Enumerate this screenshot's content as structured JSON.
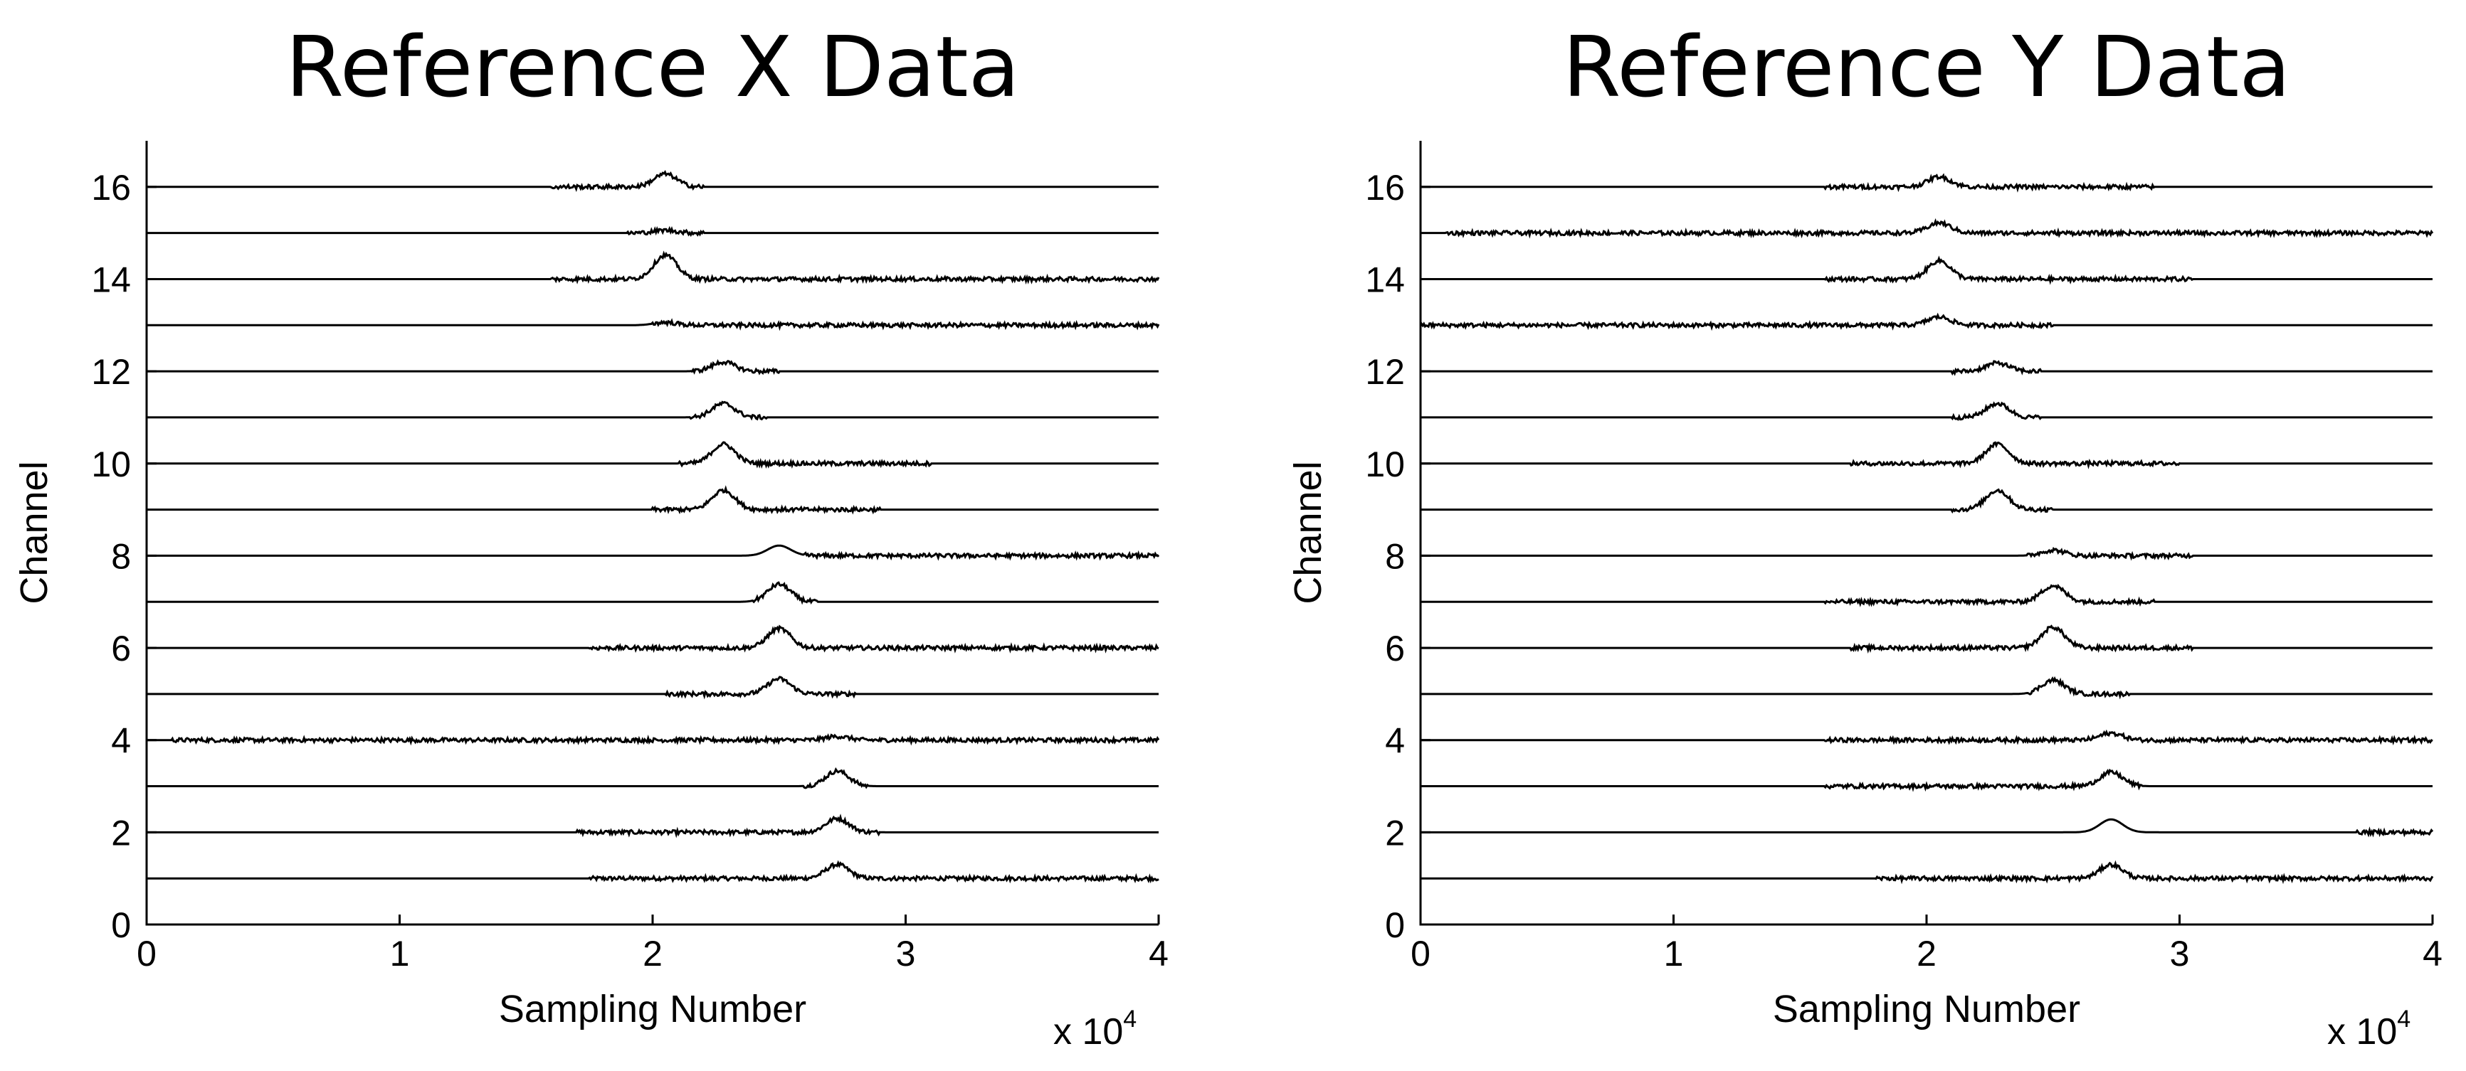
{
  "chart_data": [
    {
      "type": "line",
      "title": "Reference X Data",
      "xlabel": "Sampling Number",
      "ylabel": "Channel",
      "x_multiplier": "x 10",
      "x_multiplier_exp": "4",
      "xlim": [
        0,
        4
      ],
      "ylim": [
        0,
        17
      ],
      "xticks": [
        "0",
        "1",
        "2",
        "3",
        "4"
      ],
      "yticks": [
        "0",
        "2",
        "4",
        "6",
        "8",
        "10",
        "12",
        "14",
        "16"
      ],
      "grid": false,
      "series": [
        {
          "channel": 1,
          "peak_x": 2.73,
          "peak_height": 0.3,
          "noise_start": 1.75,
          "noise_end": 4.0
        },
        {
          "channel": 2,
          "peak_x": 2.73,
          "peak_height": 0.3,
          "noise_start": 1.7,
          "noise_end": 2.9
        },
        {
          "channel": 3,
          "peak_x": 2.73,
          "peak_height": 0.33,
          "noise_start": 2.6,
          "noise_end": 2.85
        },
        {
          "channel": 4,
          "peak_x": 2.73,
          "peak_height": 0.08,
          "noise_start": 0.1,
          "noise_end": 4.0
        },
        {
          "channel": 5,
          "peak_x": 2.5,
          "peak_height": 0.33,
          "noise_start": 2.05,
          "noise_end": 2.8
        },
        {
          "channel": 6,
          "peak_x": 2.5,
          "peak_height": 0.42,
          "noise_start": 1.75,
          "noise_end": 4.0
        },
        {
          "channel": 7,
          "peak_x": 2.5,
          "peak_height": 0.38,
          "noise_start": 2.4,
          "noise_end": 2.65
        },
        {
          "channel": 8,
          "peak_x": 2.5,
          "peak_height": 0.22,
          "noise_start": 2.6,
          "noise_end": 4.0
        },
        {
          "channel": 9,
          "peak_x": 2.28,
          "peak_height": 0.42,
          "noise_start": 2.0,
          "noise_end": 2.9
        },
        {
          "channel": 10,
          "peak_x": 2.28,
          "peak_height": 0.42,
          "noise_start": 2.1,
          "noise_end": 3.1
        },
        {
          "channel": 11,
          "peak_x": 2.28,
          "peak_height": 0.3,
          "noise_start": 2.15,
          "noise_end": 2.45
        },
        {
          "channel": 12,
          "peak_x": 2.28,
          "peak_height": 0.2,
          "noise_start": 2.15,
          "noise_end": 2.5
        },
        {
          "channel": 13,
          "peak_x": 2.05,
          "peak_height": 0.06,
          "noise_start": 2.0,
          "noise_end": 4.0
        },
        {
          "channel": 14,
          "peak_x": 2.05,
          "peak_height": 0.52,
          "noise_start": 1.6,
          "noise_end": 4.0
        },
        {
          "channel": 15,
          "peak_x": 2.05,
          "peak_height": 0.06,
          "noise_start": 1.9,
          "noise_end": 2.2
        },
        {
          "channel": 16,
          "peak_x": 2.05,
          "peak_height": 0.28,
          "noise_start": 1.6,
          "noise_end": 2.2
        }
      ]
    },
    {
      "type": "line",
      "title": "Reference Y Data",
      "xlabel": "Sampling Number",
      "ylabel": "Channel",
      "x_multiplier": "x 10",
      "x_multiplier_exp": "4",
      "xlim": [
        0,
        4
      ],
      "ylim": [
        0,
        17
      ],
      "xticks": [
        "0",
        "1",
        "2",
        "3",
        "4"
      ],
      "yticks": [
        "0",
        "2",
        "4",
        "6",
        "8",
        "10",
        "12",
        "14",
        "16"
      ],
      "grid": false,
      "series": [
        {
          "channel": 1,
          "peak_x": 2.73,
          "peak_height": 0.3,
          "noise_start": 1.8,
          "noise_end": 4.0
        },
        {
          "channel": 2,
          "peak_x": 2.73,
          "peak_height": 0.28,
          "noise_start": 3.7,
          "noise_end": 4.0
        },
        {
          "channel": 3,
          "peak_x": 2.73,
          "peak_height": 0.3,
          "noise_start": 1.6,
          "noise_end": 2.85
        },
        {
          "channel": 4,
          "peak_x": 2.73,
          "peak_height": 0.15,
          "noise_start": 1.6,
          "noise_end": 4.0
        },
        {
          "channel": 5,
          "peak_x": 2.5,
          "peak_height": 0.3,
          "noise_start": 2.4,
          "noise_end": 2.8
        },
        {
          "channel": 6,
          "peak_x": 2.5,
          "peak_height": 0.45,
          "noise_start": 1.7,
          "noise_end": 3.05
        },
        {
          "channel": 7,
          "peak_x": 2.5,
          "peak_height": 0.35,
          "noise_start": 1.6,
          "noise_end": 2.9
        },
        {
          "channel": 8,
          "peak_x": 2.5,
          "peak_height": 0.12,
          "noise_start": 2.4,
          "noise_end": 3.05
        },
        {
          "channel": 9,
          "peak_x": 2.28,
          "peak_height": 0.42,
          "noise_start": 2.1,
          "noise_end": 2.5
        },
        {
          "channel": 10,
          "peak_x": 2.28,
          "peak_height": 0.42,
          "noise_start": 1.7,
          "noise_end": 3.0
        },
        {
          "channel": 11,
          "peak_x": 2.28,
          "peak_height": 0.3,
          "noise_start": 2.1,
          "noise_end": 2.45
        },
        {
          "channel": 12,
          "peak_x": 2.28,
          "peak_height": 0.18,
          "noise_start": 2.1,
          "noise_end": 2.45
        },
        {
          "channel": 13,
          "peak_x": 2.05,
          "peak_height": 0.18,
          "noise_start": 0.0,
          "noise_end": 2.5
        },
        {
          "channel": 14,
          "peak_x": 2.05,
          "peak_height": 0.4,
          "noise_start": 1.6,
          "noise_end": 3.05
        },
        {
          "channel": 15,
          "peak_x": 2.05,
          "peak_height": 0.22,
          "noise_start": 0.1,
          "noise_end": 4.0
        },
        {
          "channel": 16,
          "peak_x": 2.05,
          "peak_height": 0.22,
          "noise_start": 1.6,
          "noise_end": 2.9
        }
      ]
    }
  ]
}
